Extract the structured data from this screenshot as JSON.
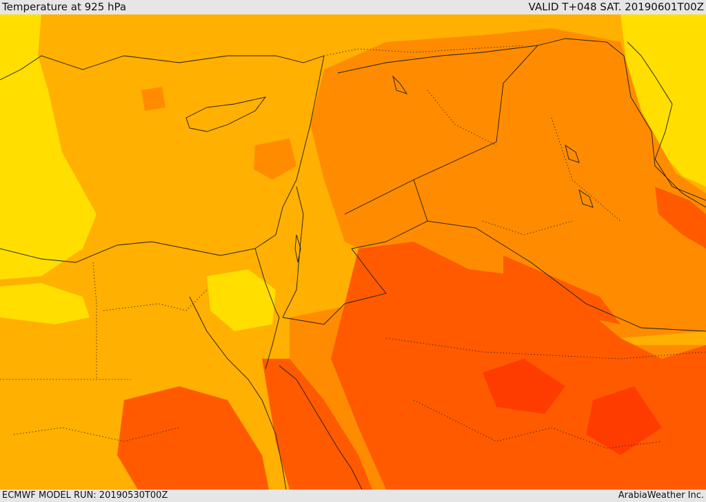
{
  "header": {
    "title": "Temperature at 925 hPa",
    "valid": "VALID T+048 SAT. 20190601T00Z"
  },
  "footer": {
    "model_run": "ECMWF MODEL RUN: 20190530T00Z",
    "credit": "ArabiaWeather Inc."
  },
  "palette": {
    "yellow": "#ffde00",
    "light_orange": "#ffb000",
    "orange": "#ff8c00",
    "dark_orange": "#ff5a00",
    "red_orange": "#ff3c00"
  }
}
